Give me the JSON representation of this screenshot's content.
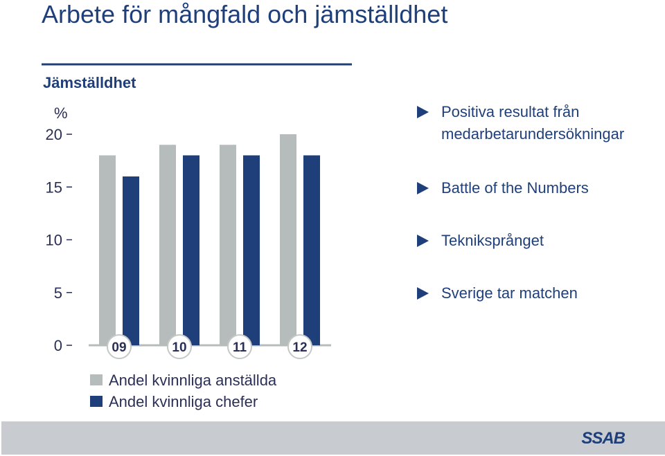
{
  "title": "Arbete för mångfald och jämställdhet",
  "bullets": [
    "Positiva resultat från medarbetarundersökningar",
    "Battle of the Numbers",
    "Tekniksprånget",
    "Sverige tar matchen"
  ],
  "logo": "SSAB",
  "chart_data": {
    "type": "bar",
    "title": "Jämställdhet",
    "ylabel": "%",
    "ylim": [
      0,
      20
    ],
    "yticks": [
      "0",
      "5",
      "10",
      "15",
      "20"
    ],
    "categories": [
      "09",
      "10",
      "11",
      "12"
    ],
    "series": [
      {
        "name": "Andel kvinnliga anställda",
        "values": [
          18,
          19,
          19,
          20
        ],
        "color": "#b5bcbb"
      },
      {
        "name": "Andel kvinnliga chefer",
        "values": [
          16,
          18,
          18,
          18
        ],
        "color": "#1f3f7a"
      }
    ],
    "colors": {
      "grey": "#b5bcbb",
      "blue": "#1f3f7a",
      "text": "#1f3f7a",
      "axis": "#2a2f55"
    }
  }
}
